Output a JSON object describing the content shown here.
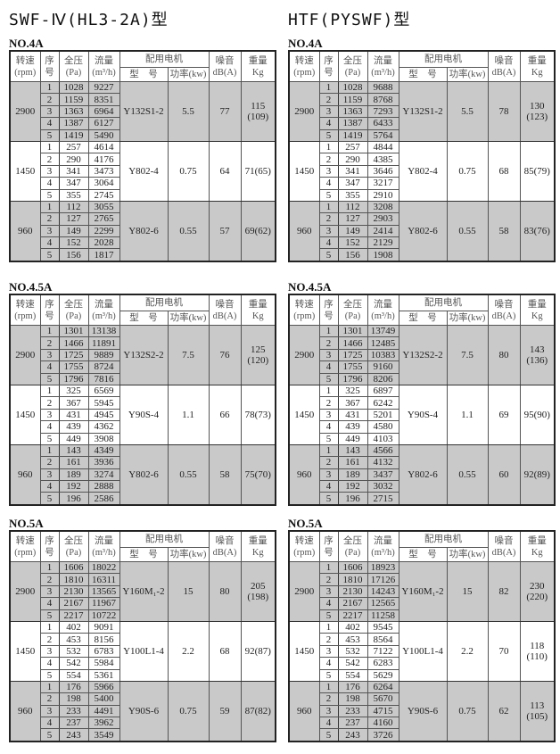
{
  "headers": {
    "rpm": [
      "转速",
      "(rpm)"
    ],
    "seq": [
      "序",
      "号"
    ],
    "pressure": [
      "全压",
      "(Pa)"
    ],
    "flow": [
      "流量",
      "(m³/h)"
    ],
    "motor": "配用电机",
    "motor_model": "型　号",
    "power": "功率(kw)",
    "noise": [
      "噪音",
      "dB(A)"
    ],
    "weight": [
      "重量",
      "Kg"
    ]
  },
  "colors": {
    "shade": "#c9c9c9",
    "border": "#222222"
  },
  "models": [
    {
      "title": "SWF-Ⅳ(HL3-2A)型",
      "blocks": [
        {
          "label": "NO.4A",
          "groups": [
            {
              "rpm": "2900",
              "rows": [
                [
                  "1",
                  "1028",
                  "9227"
                ],
                [
                  "2",
                  "1159",
                  "8351"
                ],
                [
                  "3",
                  "1363",
                  "6964"
                ],
                [
                  "4",
                  "1387",
                  "6127"
                ],
                [
                  "5",
                  "1419",
                  "5490"
                ]
              ],
              "motor_model": "Y132S1-2",
              "power": "5.5",
              "noise": "77",
              "weight": [
                "115",
                "(109)"
              ]
            },
            {
              "rpm": "1450",
              "rows": [
                [
                  "1",
                  "257",
                  "4614"
                ],
                [
                  "2",
                  "290",
                  "4176"
                ],
                [
                  "3",
                  "341",
                  "3473"
                ],
                [
                  "4",
                  "347",
                  "3064"
                ],
                [
                  "5",
                  "355",
                  "2745"
                ]
              ],
              "motor_model": "Y802-4",
              "power": "0.75",
              "noise": "64",
              "weight": [
                "71(65)"
              ]
            },
            {
              "rpm": "960",
              "rows": [
                [
                  "1",
                  "112",
                  "3055"
                ],
                [
                  "2",
                  "127",
                  "2765"
                ],
                [
                  "3",
                  "149",
                  "2299"
                ],
                [
                  "4",
                  "152",
                  "2028"
                ],
                [
                  "5",
                  "156",
                  "1817"
                ]
              ],
              "motor_model": "Y802-6",
              "power": "0.55",
              "noise": "57",
              "weight": [
                "69(62)"
              ]
            }
          ]
        },
        {
          "label": "NO.4.5A",
          "groups": [
            {
              "rpm": "2900",
              "rows": [
                [
                  "1",
                  "1301",
                  "13138"
                ],
                [
                  "2",
                  "1466",
                  "11891"
                ],
                [
                  "3",
                  "1725",
                  "9889"
                ],
                [
                  "4",
                  "1755",
                  "8724"
                ],
                [
                  "5",
                  "1796",
                  "7816"
                ]
              ],
              "motor_model": "Y132S2-2",
              "power": "7.5",
              "noise": "76",
              "weight": [
                "125",
                "(120)"
              ]
            },
            {
              "rpm": "1450",
              "rows": [
                [
                  "1",
                  "325",
                  "6569"
                ],
                [
                  "2",
                  "367",
                  "5945"
                ],
                [
                  "3",
                  "431",
                  "4945"
                ],
                [
                  "4",
                  "439",
                  "4362"
                ],
                [
                  "5",
                  "449",
                  "3908"
                ]
              ],
              "motor_model": "Y90S-4",
              "power": "1.1",
              "noise": "66",
              "weight": [
                "78(73)"
              ]
            },
            {
              "rpm": "960",
              "rows": [
                [
                  "1",
                  "143",
                  "4349"
                ],
                [
                  "2",
                  "161",
                  "3936"
                ],
                [
                  "3",
                  "189",
                  "3274"
                ],
                [
                  "4",
                  "192",
                  "2888"
                ],
                [
                  "5",
                  "196",
                  "2586"
                ]
              ],
              "motor_model": "Y802-6",
              "power": "0.55",
              "noise": "58",
              "weight": [
                "75(70)"
              ]
            }
          ]
        },
        {
          "label": "NO.5A",
          "groups": [
            {
              "rpm": "2900",
              "rows": [
                [
                  "1",
                  "1606",
                  "18022"
                ],
                [
                  "2",
                  "1810",
                  "16311"
                ],
                [
                  "3",
                  "2130",
                  "13565"
                ],
                [
                  "4",
                  "2167",
                  "11967"
                ],
                [
                  "5",
                  "2217",
                  "10722"
                ]
              ],
              "motor_model": "Y160M₁-2",
              "power": "15",
              "noise": "80",
              "weight": [
                "205",
                "(198)"
              ]
            },
            {
              "rpm": "1450",
              "rows": [
                [
                  "1",
                  "402",
                  "9091"
                ],
                [
                  "2",
                  "453",
                  "8156"
                ],
                [
                  "3",
                  "532",
                  "6783"
                ],
                [
                  "4",
                  "542",
                  "5984"
                ],
                [
                  "5",
                  "554",
                  "5361"
                ]
              ],
              "motor_model": "Y100L1-4",
              "power": "2.2",
              "noise": "68",
              "weight": [
                "92(87)"
              ]
            },
            {
              "rpm": "960",
              "rows": [
                [
                  "1",
                  "176",
                  "5966"
                ],
                [
                  "2",
                  "198",
                  "5400"
                ],
                [
                  "3",
                  "233",
                  "4491"
                ],
                [
                  "4",
                  "237",
                  "3962"
                ],
                [
                  "5",
                  "243",
                  "3549"
                ]
              ],
              "motor_model": "Y90S-6",
              "power": "0.75",
              "noise": "59",
              "weight": [
                "87(82)"
              ]
            }
          ]
        }
      ]
    },
    {
      "title": "HTF(PYSWF)型",
      "blocks": [
        {
          "label": "NO.4A",
          "groups": [
            {
              "rpm": "2900",
              "rows": [
                [
                  "1",
                  "1028",
                  "9688"
                ],
                [
                  "2",
                  "1159",
                  "8768"
                ],
                [
                  "3",
                  "1363",
                  "7293"
                ],
                [
                  "4",
                  "1387",
                  "6433"
                ],
                [
                  "5",
                  "1419",
                  "5764"
                ]
              ],
              "motor_model": "Y132S1-2",
              "power": "5.5",
              "noise": "78",
              "weight": [
                "130",
                "(123)"
              ]
            },
            {
              "rpm": "1450",
              "rows": [
                [
                  "1",
                  "257",
                  "4844"
                ],
                [
                  "2",
                  "290",
                  "4385"
                ],
                [
                  "3",
                  "341",
                  "3646"
                ],
                [
                  "4",
                  "347",
                  "3217"
                ],
                [
                  "5",
                  "355",
                  "2910"
                ]
              ],
              "motor_model": "Y802-4",
              "power": "0.75",
              "noise": "68",
              "weight": [
                "85(79)"
              ]
            },
            {
              "rpm": "960",
              "rows": [
                [
                  "1",
                  "112",
                  "3208"
                ],
                [
                  "2",
                  "127",
                  "2903"
                ],
                [
                  "3",
                  "149",
                  "2414"
                ],
                [
                  "4",
                  "152",
                  "2129"
                ],
                [
                  "5",
                  "156",
                  "1908"
                ]
              ],
              "motor_model": "Y802-6",
              "power": "0.55",
              "noise": "58",
              "weight": [
                "83(76)"
              ]
            }
          ]
        },
        {
          "label": "NO.4.5A",
          "groups": [
            {
              "rpm": "2900",
              "rows": [
                [
                  "1",
                  "1301",
                  "13749"
                ],
                [
                  "2",
                  "1466",
                  "12485"
                ],
                [
                  "3",
                  "1725",
                  "10383"
                ],
                [
                  "4",
                  "1755",
                  "9160"
                ],
                [
                  "5",
                  "1796",
                  "8206"
                ]
              ],
              "motor_model": "Y132S2-2",
              "power": "7.5",
              "noise": "80",
              "weight": [
                "143",
                "(136)"
              ]
            },
            {
              "rpm": "1450",
              "rows": [
                [
                  "1",
                  "325",
                  "6897"
                ],
                [
                  "2",
                  "367",
                  "6242"
                ],
                [
                  "3",
                  "431",
                  "5201"
                ],
                [
                  "4",
                  "439",
                  "4580"
                ],
                [
                  "5",
                  "449",
                  "4103"
                ]
              ],
              "motor_model": "Y90S-4",
              "power": "1.1",
              "noise": "69",
              "weight": [
                "95(90)"
              ]
            },
            {
              "rpm": "960",
              "rows": [
                [
                  "1",
                  "143",
                  "4566"
                ],
                [
                  "2",
                  "161",
                  "4132"
                ],
                [
                  "3",
                  "189",
                  "3437"
                ],
                [
                  "4",
                  "192",
                  "3032"
                ],
                [
                  "5",
                  "196",
                  "2715"
                ]
              ],
              "motor_model": "Y802-6",
              "power": "0.55",
              "noise": "60",
              "weight": [
                "92(89)"
              ]
            }
          ]
        },
        {
          "label": "NO.5A",
          "groups": [
            {
              "rpm": "2900",
              "rows": [
                [
                  "1",
                  "1606",
                  "18923"
                ],
                [
                  "2",
                  "1810",
                  "17126"
                ],
                [
                  "3",
                  "2130",
                  "14243"
                ],
                [
                  "4",
                  "2167",
                  "12565"
                ],
                [
                  "5",
                  "2217",
                  "11258"
                ]
              ],
              "motor_model": "Y160M₁-2",
              "power": "15",
              "noise": "82",
              "weight": [
                "230",
                "(220)"
              ]
            },
            {
              "rpm": "1450",
              "rows": [
                [
                  "1",
                  "402",
                  "9545"
                ],
                [
                  "2",
                  "453",
                  "8564"
                ],
                [
                  "3",
                  "532",
                  "7122"
                ],
                [
                  "4",
                  "542",
                  "6283"
                ],
                [
                  "5",
                  "554",
                  "5629"
                ]
              ],
              "motor_model": "Y100L1-4",
              "power": "2.2",
              "noise": "70",
              "weight": [
                "118",
                "(110)"
              ]
            },
            {
              "rpm": "960",
              "rows": [
                [
                  "1",
                  "176",
                  "6264"
                ],
                [
                  "2",
                  "198",
                  "5670"
                ],
                [
                  "3",
                  "233",
                  "4715"
                ],
                [
                  "4",
                  "237",
                  "4160"
                ],
                [
                  "5",
                  "243",
                  "3726"
                ]
              ],
              "motor_model": "Y90S-6",
              "power": "0.75",
              "noise": "62",
              "weight": [
                "113",
                "(105)"
              ]
            }
          ]
        }
      ]
    }
  ]
}
